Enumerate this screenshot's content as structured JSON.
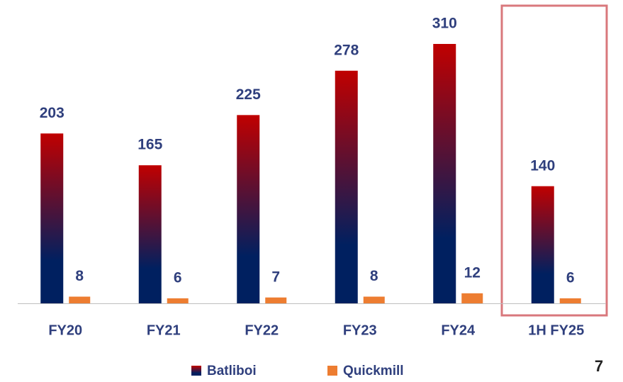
{
  "chart_data": {
    "type": "bar",
    "categories": [
      "FY20",
      "FY21",
      "FY22",
      "FY23",
      "FY24",
      "1H FY25"
    ],
    "series": [
      {
        "name": "Batliboi",
        "colors": [
          "#002060",
          "#c00000"
        ],
        "values": [
          203,
          165,
          225,
          278,
          310,
          140
        ]
      },
      {
        "name": "Quickmill",
        "color": "#ed7d31",
        "values": [
          8,
          6,
          7,
          8,
          12,
          6
        ]
      }
    ],
    "legend": "bottom"
  },
  "page_number": "7"
}
